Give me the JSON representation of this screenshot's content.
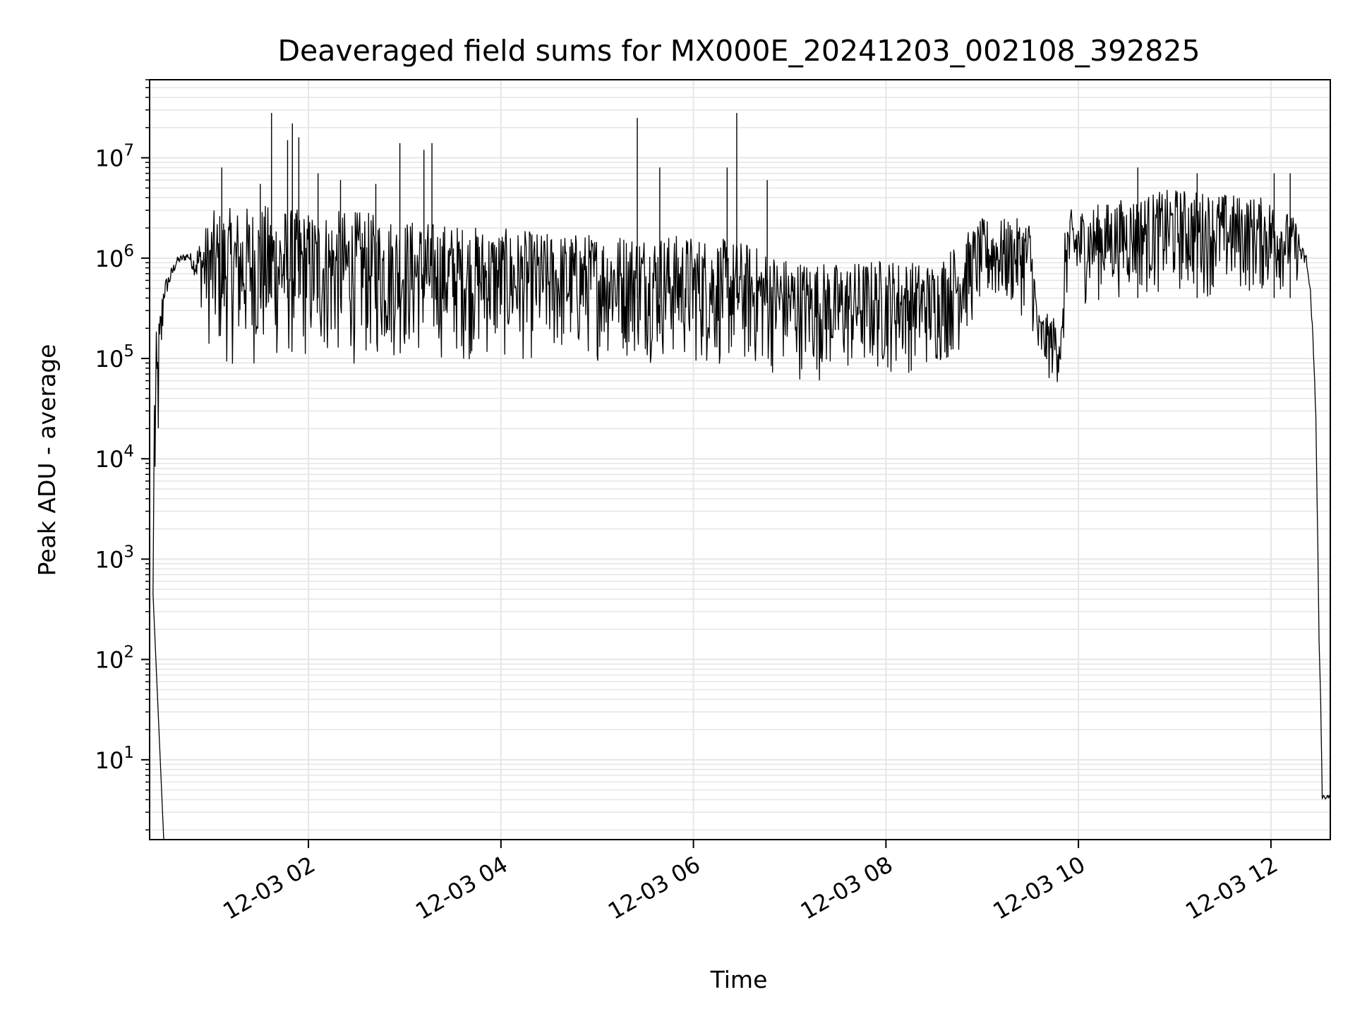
{
  "chart_data": {
    "type": "line",
    "title": "Deaveraged field sums for MX000E_20241203_002108_392825",
    "xlabel": "Time",
    "ylabel": "Peak ADU - average",
    "yscale": "log",
    "ylim": [
      1.6,
      60000000
    ],
    "xlim": [
      "12-03 00:21",
      "12-03 12:37"
    ],
    "grid": true,
    "line_color": "#000000",
    "grid_color": "#e6e6e6",
    "x_ticks": [
      {
        "label": "12-03 02",
        "value": "02:00"
      },
      {
        "label": "12-03 04",
        "value": "04:00"
      },
      {
        "label": "12-03 06",
        "value": "06:00"
      },
      {
        "label": "12-03 08",
        "value": "08:00"
      },
      {
        "label": "12-03 10",
        "value": "10:00"
      },
      {
        "label": "12-03 12",
        "value": "12:00"
      }
    ],
    "y_ticks": [
      {
        "base": "10",
        "exp": "1",
        "value": 10
      },
      {
        "base": "10",
        "exp": "2",
        "value": 100
      },
      {
        "base": "10",
        "exp": "3",
        "value": 1000
      },
      {
        "base": "10",
        "exp": "4",
        "value": 10000
      },
      {
        "base": "10",
        "exp": "5",
        "value": 100000
      },
      {
        "base": "10",
        "exp": "6",
        "value": 1000000
      },
      {
        "base": "10",
        "exp": "7",
        "value": 10000000
      }
    ],
    "series": [
      {
        "envelope": [
          {
            "t": "00:24",
            "low": 450,
            "high": 135000
          },
          {
            "t": "00:30",
            "low": 300000,
            "high": 700000
          },
          {
            "t": "00:38",
            "low": 800000,
            "high": 1100000
          },
          {
            "t": "00:45",
            "low": 900000,
            "high": 1250000
          },
          {
            "t": "00:50",
            "low": 500000,
            "high": 1300000
          },
          {
            "t": "01:00",
            "low": 80000,
            "high": 3000000
          },
          {
            "t": "01:30",
            "low": 75000,
            "high": 3500000
          },
          {
            "t": "02:00",
            "low": 80000,
            "high": 3000000
          },
          {
            "t": "02:30",
            "low": 80000,
            "high": 3000000
          },
          {
            "t": "03:00",
            "low": 90000,
            "high": 2500000
          },
          {
            "t": "03:30",
            "low": 90000,
            "high": 2200000
          },
          {
            "t": "04:00",
            "low": 85000,
            "high": 2000000
          },
          {
            "t": "04:30",
            "low": 85000,
            "high": 1800000
          },
          {
            "t": "05:00",
            "low": 90000,
            "high": 1800000
          },
          {
            "t": "05:30",
            "low": 90000,
            "high": 1800000
          },
          {
            "t": "06:00",
            "low": 75000,
            "high": 1700000
          },
          {
            "t": "06:30",
            "low": 70000,
            "high": 1500000
          },
          {
            "t": "07:00",
            "low": 60000,
            "high": 1000000
          },
          {
            "t": "07:30",
            "low": 55000,
            "high": 900000
          },
          {
            "t": "08:00",
            "low": 65000,
            "high": 1000000
          },
          {
            "t": "08:30",
            "low": 70000,
            "high": 900000
          },
          {
            "t": "08:45",
            "low": 100000,
            "high": 1500000
          },
          {
            "t": "09:00",
            "low": 300000,
            "high": 2500000
          },
          {
            "t": "09:30",
            "low": 250000,
            "high": 2500000
          },
          {
            "t": "09:35",
            "low": 60000,
            "high": 300000
          },
          {
            "t": "09:50",
            "low": 50000,
            "high": 250000
          },
          {
            "t": "09:52",
            "low": 300000,
            "high": 3000000
          },
          {
            "t": "10:30",
            "low": 400000,
            "high": 4000000
          },
          {
            "t": "11:00",
            "low": 400000,
            "high": 5000000
          },
          {
            "t": "11:30",
            "low": 400000,
            "high": 4500000
          },
          {
            "t": "12:00",
            "low": 400000,
            "high": 4000000
          },
          {
            "t": "12:15",
            "low": 500000,
            "high": 2500000
          },
          {
            "t": "12:22",
            "low": 800000,
            "high": 1200000
          },
          {
            "t": "12:25",
            "low": 300000,
            "high": 500000
          },
          {
            "t": "12:28",
            "low": 20000,
            "high": 50000
          },
          {
            "t": "12:30",
            "low": 100,
            "high": 200
          },
          {
            "t": "12:31",
            "low": 35,
            "high": 40
          },
          {
            "t": "12:32",
            "low": 3.9,
            "high": 4.6
          },
          {
            "t": "12:37",
            "low": 3.9,
            "high": 4.6
          }
        ],
        "spikes": [
          {
            "t": "01:06",
            "value": 8000000
          },
          {
            "t": "01:30",
            "value": 5500000
          },
          {
            "t": "01:37",
            "value": 28000000
          },
          {
            "t": "01:47",
            "value": 15000000
          },
          {
            "t": "01:50",
            "value": 22000000
          },
          {
            "t": "01:54",
            "value": 16000000
          },
          {
            "t": "02:06",
            "value": 7000000
          },
          {
            "t": "02:20",
            "value": 6000000
          },
          {
            "t": "02:42",
            "value": 5500000
          },
          {
            "t": "02:57",
            "value": 14000000
          },
          {
            "t": "03:12",
            "value": 12000000
          },
          {
            "t": "03:17",
            "value": 14000000
          },
          {
            "t": "05:25",
            "value": 25000000
          },
          {
            "t": "05:39",
            "value": 8000000
          },
          {
            "t": "06:21",
            "value": 8000000
          },
          {
            "t": "06:27",
            "value": 28000000
          },
          {
            "t": "06:46",
            "value": 6000000
          },
          {
            "t": "10:37",
            "value": 8000000
          },
          {
            "t": "11:14",
            "value": 7000000
          },
          {
            "t": "12:02",
            "value": 7000000
          },
          {
            "t": "12:12",
            "value": 7000000
          }
        ]
      }
    ]
  }
}
